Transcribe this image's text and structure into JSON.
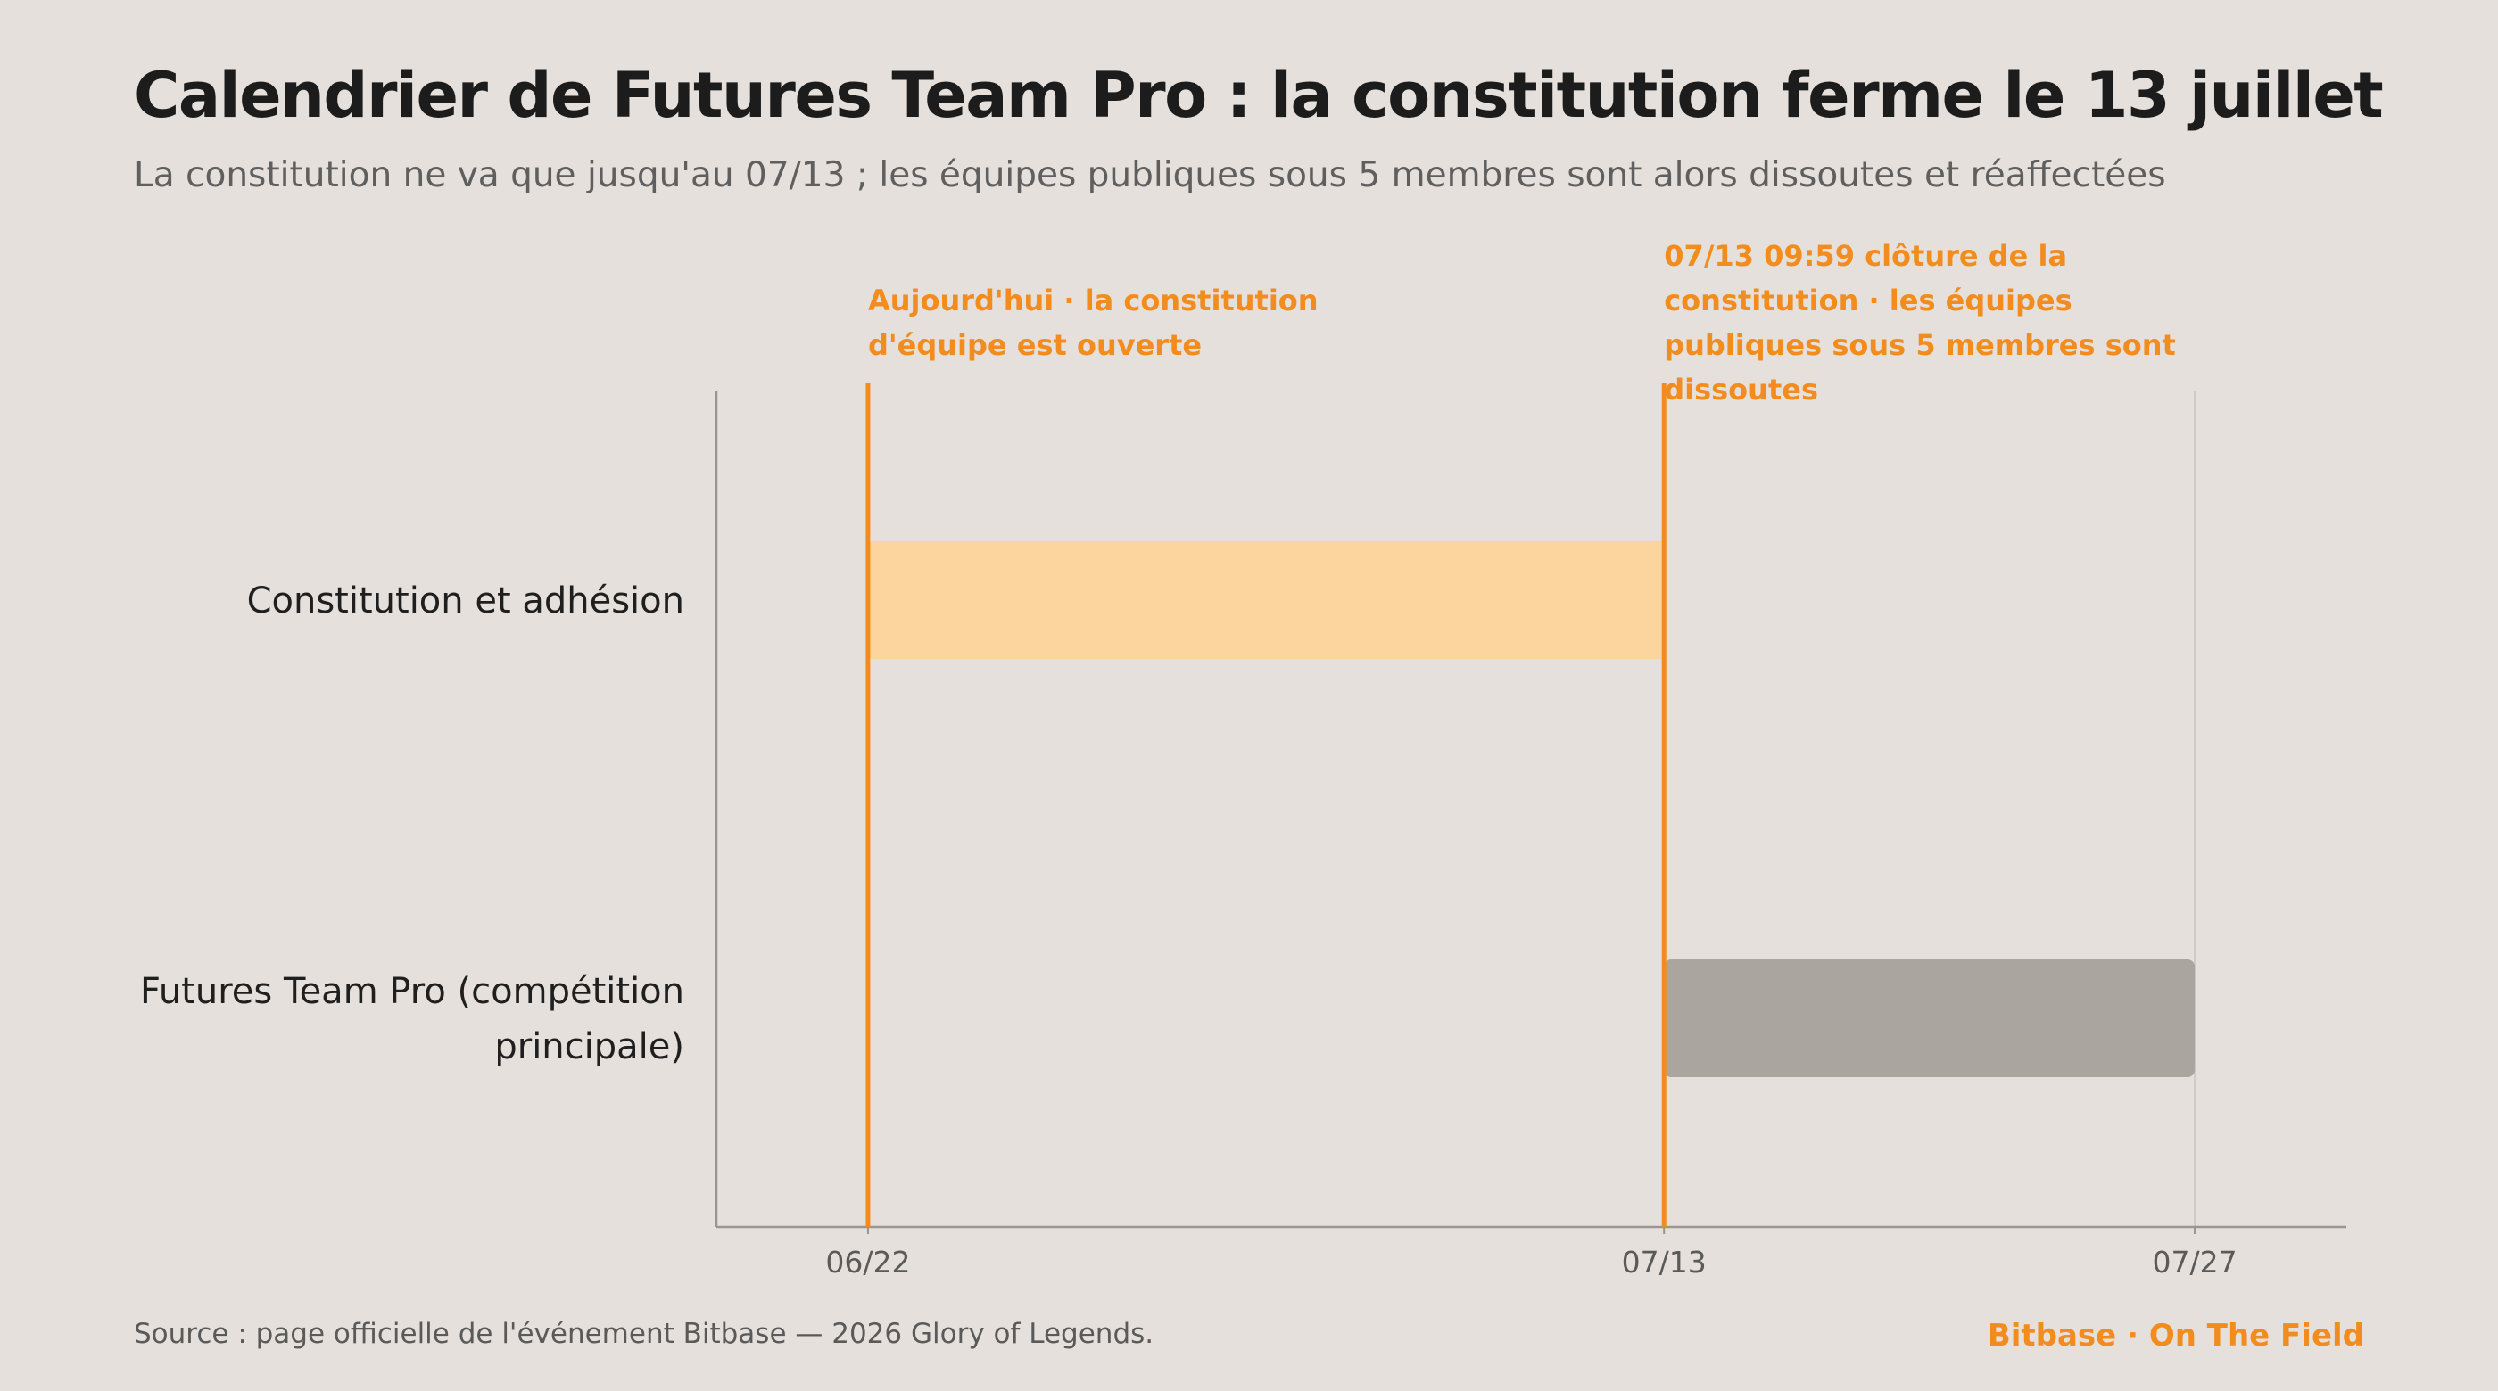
{
  "chart_data": {
    "type": "gantt",
    "title": "Calendrier de Futures Team Pro : la constitution ferme le 13 juillet",
    "subtitle": "La constitution ne va que jusqu'au 07/13 ; les équipes publiques sous 5 membres sont alors dissoutes et réaffectées",
    "x_axis": {
      "type": "date",
      "min": "06/18",
      "max": "07/31",
      "ticks": [
        "06/22",
        "07/13",
        "07/27"
      ]
    },
    "tasks": [
      {
        "label": "Constitution et adhésion",
        "start": "06/22",
        "end": "07/13",
        "color": "#fbd49e"
      },
      {
        "label": "Futures Team Pro (compétition principale)",
        "start": "07/13",
        "end": "07/27",
        "color": "#aaa59f"
      }
    ],
    "markers": [
      {
        "date": "06/22",
        "label": "Aujourd'hui · la constitution d'équipe est ouverte",
        "color": "#f28c1e"
      },
      {
        "date": "07/13",
        "label": "07/13 09:59 clôture de la constitution · les équipes publiques sous 5 membres sont dissoutes",
        "color": "#f28c1e"
      }
    ],
    "grid": false
  },
  "footer": {
    "source": "Source : page officielle de l'événement Bitbase — 2026 Glory of Legends.",
    "brand": "Bitbase · On The Field"
  },
  "colors": {
    "background": "#e5e0db",
    "accent": "#f28c1e",
    "axis": "#9a9590"
  }
}
